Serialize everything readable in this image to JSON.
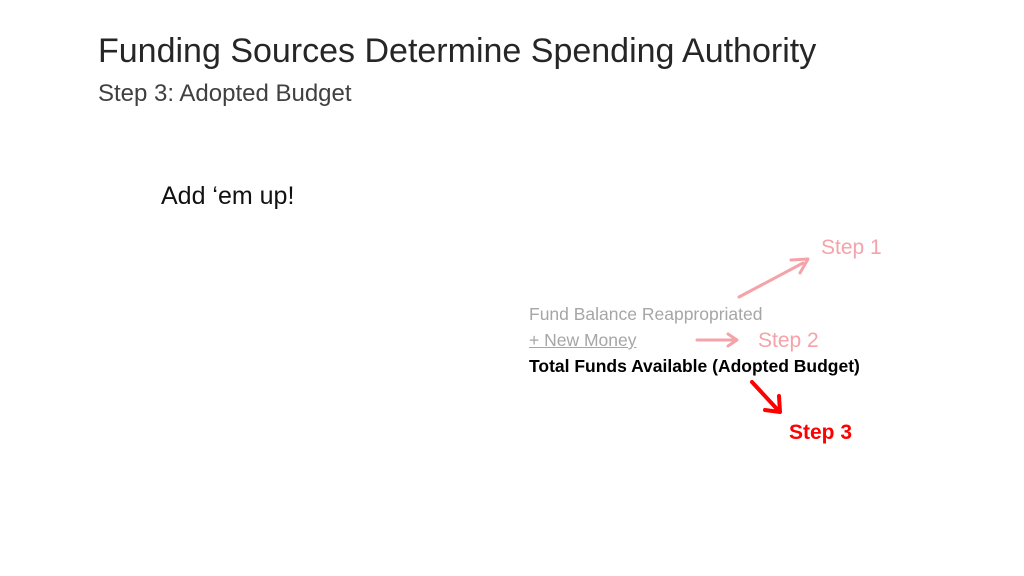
{
  "slide": {
    "title": "Funding Sources Determine Spending Authority",
    "subtitle": "Step 3: Adopted Budget",
    "lead": "Add ‘em up!"
  },
  "equation": {
    "line1": "Fund Balance Reappropriated",
    "line2": "+ New Money",
    "line3": "Total Funds Available (Adopted Budget)"
  },
  "steps": {
    "step1": "Step 1",
    "step2": "Step 2",
    "step3": "Step 3"
  },
  "colors": {
    "faded_step": "#f4a3a8",
    "active_step": "#ff0000",
    "faded_text": "#a6a6a6"
  }
}
